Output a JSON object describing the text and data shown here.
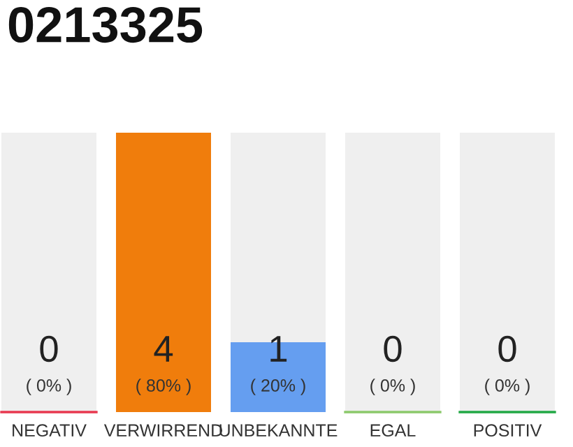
{
  "chart_data": {
    "type": "bar",
    "title": "0213325",
    "categories": [
      "NEGATIV",
      "VERWIRREND",
      "UNBEKANNTE",
      "EGAL",
      "POSITIV"
    ],
    "series": [
      {
        "color": "#efefef",
        "values": [
          80,
          null,
          80,
          80,
          80
        ]
      },
      {
        "colors": [
          "#e8384f",
          "#f07d0c",
          "#659ef0",
          "#8bc96a",
          "#22a845"
        ],
        "values": [
          0,
          80,
          20,
          0,
          0
        ],
        "value_labels": [
          "( 0% )",
          "( 80% )",
          "( 20% )",
          "( 0% )",
          "( 0% )"
        ]
      }
    ],
    "annotations": [
      "0",
      "4",
      "1",
      "0",
      "0"
    ]
  }
}
